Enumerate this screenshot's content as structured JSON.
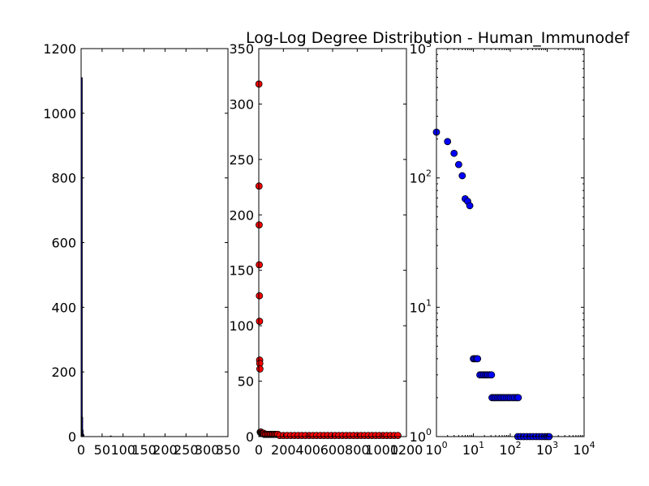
{
  "figure": {
    "title": "Log-Log Degree Distribution - Human_Immunodef"
  },
  "chart_data": [
    {
      "type": "bar",
      "title": "",
      "xlabel": "",
      "ylabel": "",
      "xlim": [
        0,
        350
      ],
      "ylim": [
        0,
        1200
      ],
      "xticks": [
        "0",
        "50",
        "100",
        "150",
        "200",
        "250",
        "300",
        "350"
      ],
      "yticks": [
        "0",
        "200",
        "400",
        "600",
        "800",
        "1000",
        "1200"
      ],
      "bars": [
        {
          "x": 1,
          "value": 1110
        },
        {
          "x": 2,
          "value": 60
        },
        {
          "x": 3,
          "value": 20
        },
        {
          "x": 4,
          "value": 8
        },
        {
          "x": 5,
          "value": 5
        },
        {
          "x": 70,
          "value": 2
        }
      ],
      "color": "#0000ff"
    },
    {
      "type": "scatter",
      "title": "",
      "xlabel": "",
      "ylabel": "",
      "xlim": [
        0,
        1200
      ],
      "ylim": [
        0,
        350
      ],
      "xticks": [
        "0",
        "200",
        "400",
        "600",
        "800",
        "1000",
        "1200"
      ],
      "yticks": [
        "0",
        "50",
        "100",
        "150",
        "200",
        "250",
        "300",
        "350"
      ],
      "color": "#ff0000",
      "points": [
        [
          1,
          318
        ],
        [
          2,
          226
        ],
        [
          3,
          191
        ],
        [
          4,
          155
        ],
        [
          5,
          127
        ],
        [
          6,
          104
        ],
        [
          7,
          69
        ],
        [
          8,
          66
        ],
        [
          9,
          61
        ],
        [
          12,
          4
        ],
        [
          14,
          4
        ],
        [
          16,
          4
        ],
        [
          18,
          4
        ],
        [
          22,
          3
        ],
        [
          26,
          3
        ],
        [
          30,
          3
        ],
        [
          35,
          3
        ],
        [
          40,
          3
        ],
        [
          45,
          2
        ],
        [
          55,
          2
        ],
        [
          65,
          2
        ],
        [
          75,
          2
        ],
        [
          85,
          2
        ],
        [
          95,
          2
        ],
        [
          105,
          2
        ],
        [
          115,
          2
        ],
        [
          125,
          2
        ],
        [
          135,
          2
        ],
        [
          145,
          2
        ],
        [
          155,
          2
        ],
        [
          170,
          1
        ],
        [
          200,
          1
        ],
        [
          230,
          1
        ],
        [
          260,
          1
        ],
        [
          290,
          1
        ],
        [
          320,
          1
        ],
        [
          350,
          1
        ],
        [
          380,
          1
        ],
        [
          410,
          1
        ],
        [
          440,
          1
        ],
        [
          470,
          1
        ],
        [
          500,
          1
        ],
        [
          530,
          1
        ],
        [
          560,
          1
        ],
        [
          590,
          1
        ],
        [
          620,
          1
        ],
        [
          650,
          1
        ],
        [
          680,
          1
        ],
        [
          710,
          1
        ],
        [
          740,
          1
        ],
        [
          770,
          1
        ],
        [
          800,
          1
        ],
        [
          830,
          1
        ],
        [
          860,
          1
        ],
        [
          890,
          1
        ],
        [
          920,
          1
        ],
        [
          950,
          1
        ],
        [
          980,
          1
        ],
        [
          1010,
          1
        ],
        [
          1040,
          1
        ],
        [
          1070,
          1
        ],
        [
          1100,
          1
        ],
        [
          1130,
          1
        ]
      ]
    },
    {
      "type": "scatter",
      "title": "",
      "xlabel": "",
      "ylabel": "",
      "xscale": "log",
      "yscale": "log",
      "xlim": [
        1,
        10000
      ],
      "ylim": [
        1,
        1000
      ],
      "xticks": [
        {
          "base": "10",
          "exp": "0"
        },
        {
          "base": "10",
          "exp": "1"
        },
        {
          "base": "10",
          "exp": "2"
        },
        {
          "base": "10",
          "exp": "3"
        },
        {
          "base": "10",
          "exp": "4"
        }
      ],
      "yticks": [
        {
          "base": "10",
          "exp": "0"
        },
        {
          "base": "10",
          "exp": "1"
        },
        {
          "base": "10",
          "exp": "2"
        },
        {
          "base": "10",
          "exp": "3"
        }
      ],
      "color": "#0000ff",
      "points": [
        [
          1,
          226
        ],
        [
          2,
          191
        ],
        [
          3,
          155
        ],
        [
          4,
          127
        ],
        [
          5,
          104
        ],
        [
          6,
          69
        ],
        [
          7,
          66
        ],
        [
          8,
          61
        ],
        [
          10,
          4
        ],
        [
          11,
          4
        ],
        [
          12,
          4
        ],
        [
          13,
          4
        ],
        [
          15,
          3
        ],
        [
          17,
          3
        ],
        [
          19,
          3
        ],
        [
          21,
          3
        ],
        [
          23,
          3
        ],
        [
          25,
          3
        ],
        [
          28,
          3
        ],
        [
          31,
          3
        ],
        [
          32,
          2
        ],
        [
          36,
          2
        ],
        [
          40,
          2
        ],
        [
          45,
          2
        ],
        [
          50,
          2
        ],
        [
          56,
          2
        ],
        [
          63,
          2
        ],
        [
          70,
          2
        ],
        [
          80,
          2
        ],
        [
          90,
          2
        ],
        [
          100,
          2
        ],
        [
          115,
          2
        ],
        [
          130,
          2
        ],
        [
          150,
          2
        ],
        [
          165,
          2
        ],
        [
          160,
          1
        ],
        [
          190,
          1
        ],
        [
          230,
          1
        ],
        [
          280,
          1
        ],
        [
          340,
          1
        ],
        [
          410,
          1
        ],
        [
          500,
          1
        ],
        [
          600,
          1
        ],
        [
          720,
          1
        ],
        [
          860,
          1
        ],
        [
          1000,
          1
        ],
        [
          1130,
          1
        ]
      ]
    }
  ]
}
